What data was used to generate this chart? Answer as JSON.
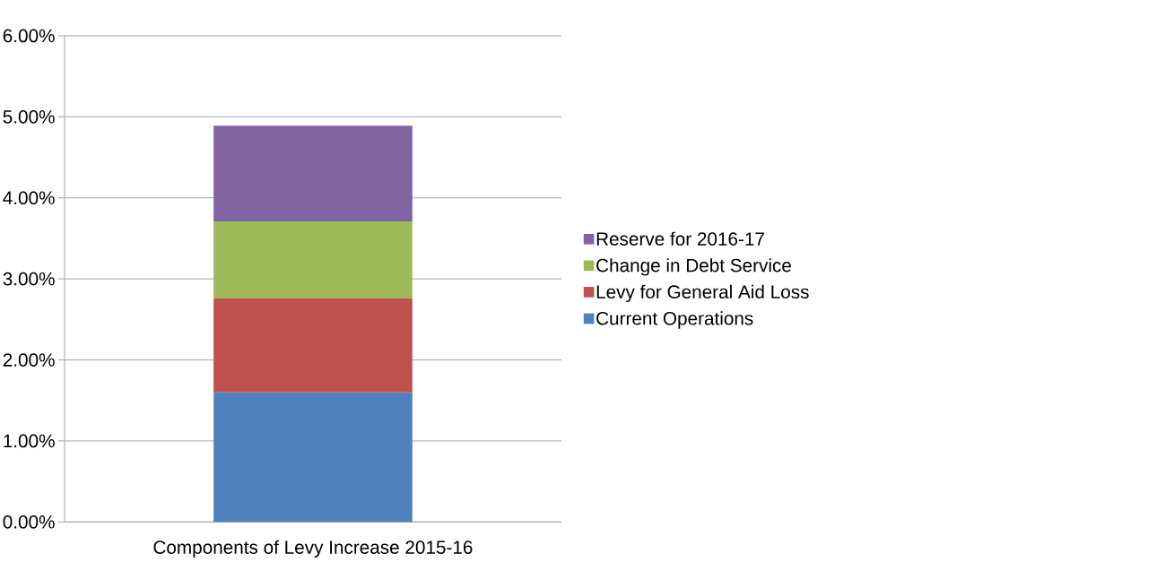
{
  "chart_data": {
    "type": "bar",
    "stacked": true,
    "categories": [
      "Components of Levy Increase 2015-16"
    ],
    "series": [
      {
        "name": "Current Operations",
        "color": "#4f81bd",
        "values": [
          1.6
        ]
      },
      {
        "name": "Levy for General Aid Loss",
        "color": "#c0504d",
        "values": [
          1.16
        ]
      },
      {
        "name": "Change in Debt Service",
        "color": "#9bbb59",
        "values": [
          0.95
        ]
      },
      {
        "name": "Reserve for 2016-17",
        "color": "#8064a2",
        "values": [
          1.18
        ]
      }
    ],
    "ylim": [
      0,
      6
    ],
    "yticks": [
      {
        "value": 0,
        "label": "0.00%"
      },
      {
        "value": 1,
        "label": "1.00%"
      },
      {
        "value": 2,
        "label": "2.00%"
      },
      {
        "value": 3,
        "label": "3.00%"
      },
      {
        "value": 4,
        "label": "4.00%"
      },
      {
        "value": 5,
        "label": "5.00%"
      },
      {
        "value": 6,
        "label": "6.00%"
      }
    ],
    "grid": "y",
    "legend": "right"
  }
}
